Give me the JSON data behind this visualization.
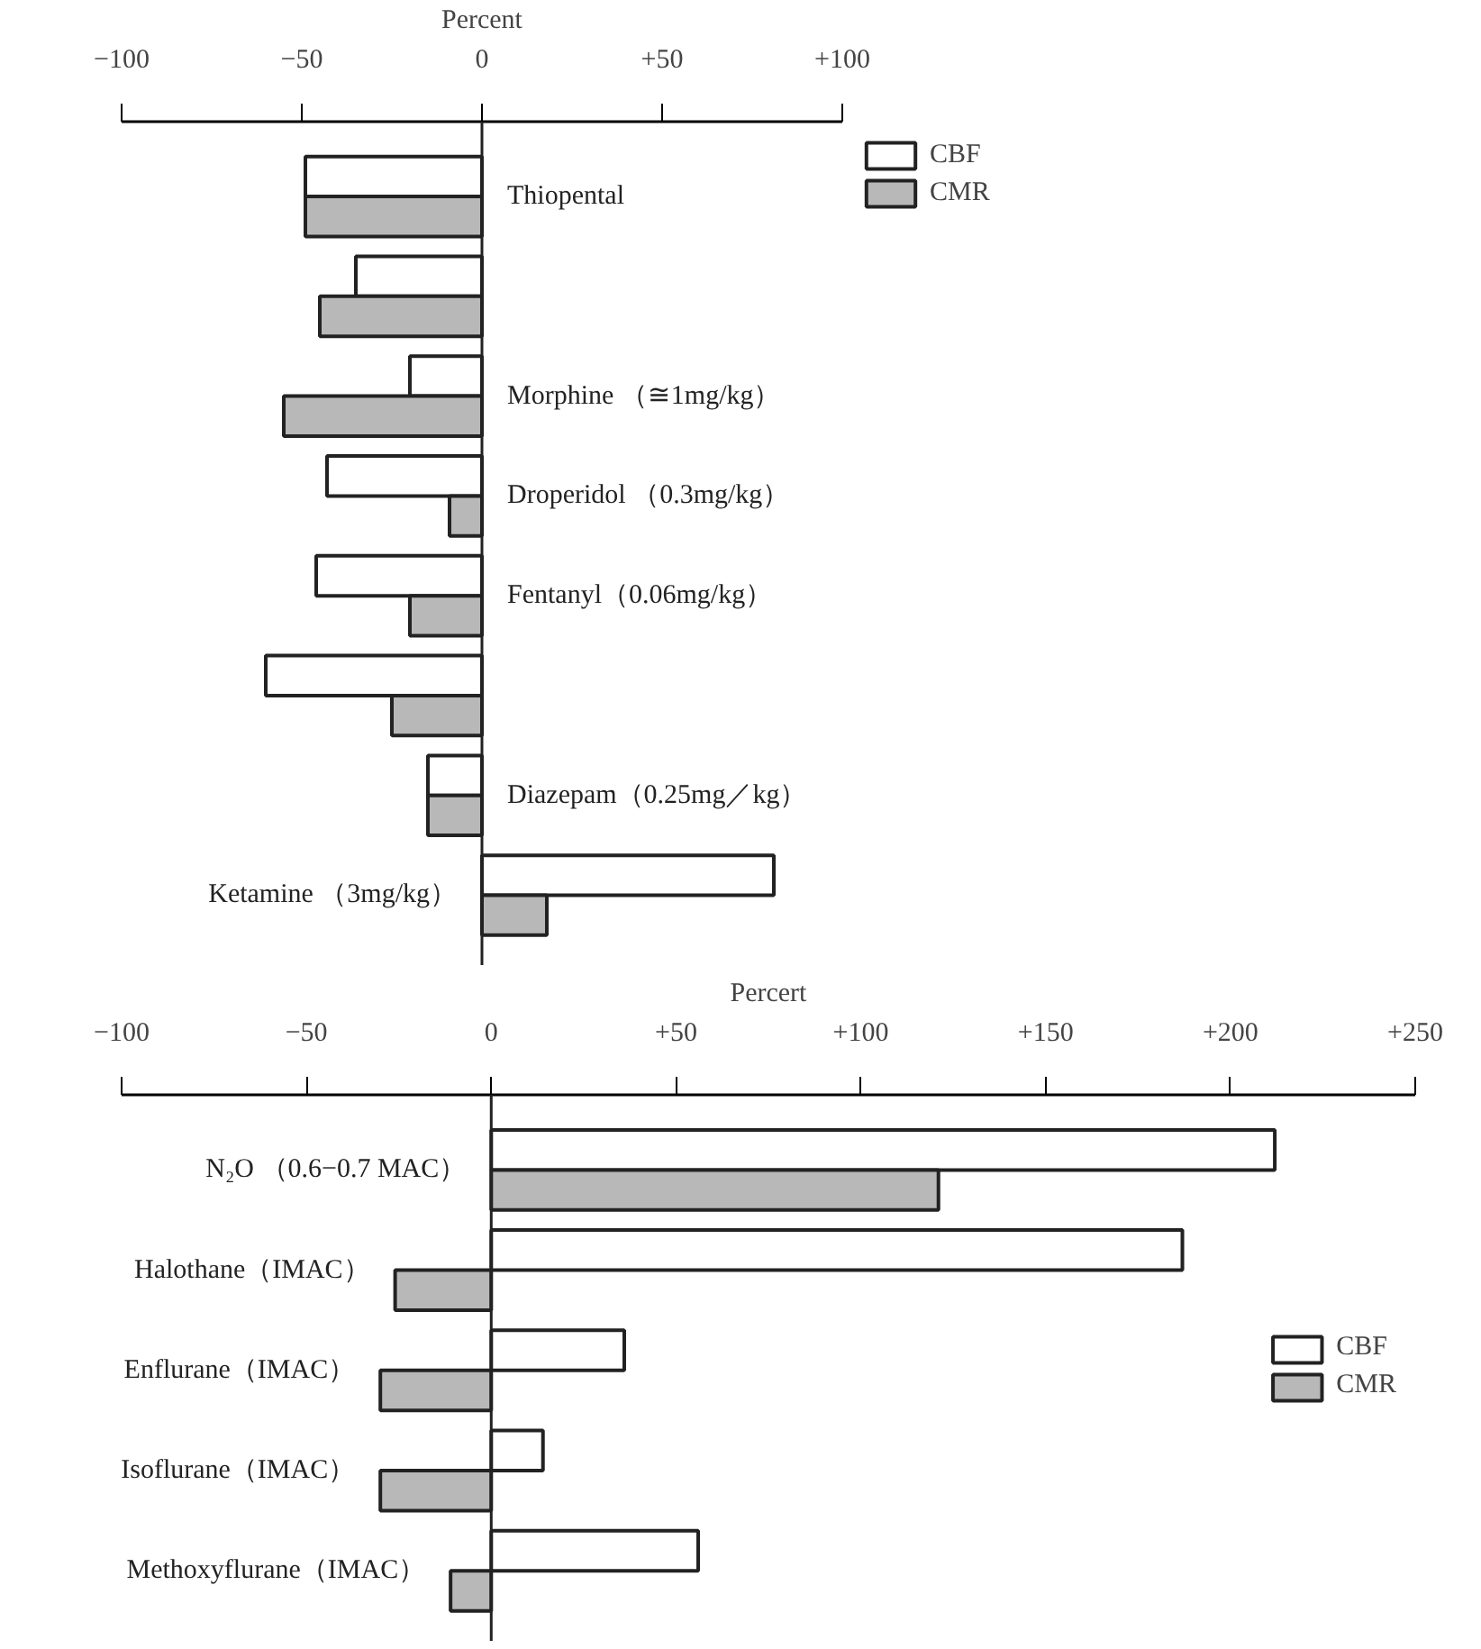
{
  "chart_data": [
    {
      "type": "bar",
      "orientation": "horizontal",
      "xlabel": "Percent",
      "categories": [
        "Thiopental",
        null,
        "Morphine （≅1mg/kg）",
        "Droperidol （0.3mg/kg）",
        "Fentanyl（0.06mg/kg）",
        null,
        "Diazepam（0.25mg／kg）",
        "Ketamine （3mg/kg）"
      ],
      "series": [
        {
          "name": "CBF",
          "color": "#ffffff",
          "values": [
            -49,
            -35,
            -20,
            -43,
            -46,
            -60,
            -15,
            81
          ]
        },
        {
          "name": "CMR",
          "color": "#b8b8b8",
          "values": [
            -49,
            -45,
            -55,
            -9,
            -20,
            -25,
            -15,
            18
          ]
        }
      ],
      "xlim": [
        -100,
        100
      ],
      "xticks": [
        {
          "value": -100,
          "label": "−100"
        },
        {
          "value": -50,
          "label": "−50"
        },
        0,
        {
          "value": 50,
          "label": "+50"
        },
        {
          "value": 100,
          "label": "+100"
        }
      ],
      "legend": "right",
      "grid": false
    },
    {
      "type": "bar",
      "orientation": "horizontal",
      "xlabel": "Percert",
      "categories": [
        "N₂O （0.6−0.7 MAC）",
        "Halothane（IMAC）",
        "Enflurane（IMAC）",
        "Isoflurane（IMAC）",
        "Methoxyflurane（IMAC）"
      ],
      "series": [
        {
          "name": "CBF",
          "color": "#ffffff",
          "values": [
            212,
            187,
            36,
            14,
            56
          ]
        },
        {
          "name": "CMR",
          "color": "#b8b8b8",
          "values": [
            121,
            -26,
            -30,
            -30,
            -11
          ]
        }
      ],
      "xlim": [
        -100,
        250
      ],
      "xticks": [
        {
          "value": -100,
          "label": "−100"
        },
        {
          "value": -50,
          "label": "−50"
        },
        0,
        {
          "value": 50,
          "label": "+50"
        },
        {
          "value": 100,
          "label": "+100"
        },
        {
          "value": 150,
          "label": "+150"
        },
        {
          "value": 200,
          "label": "+200"
        },
        {
          "value": 250,
          "label": "+250"
        }
      ],
      "legend": "center right",
      "grid": false
    }
  ]
}
